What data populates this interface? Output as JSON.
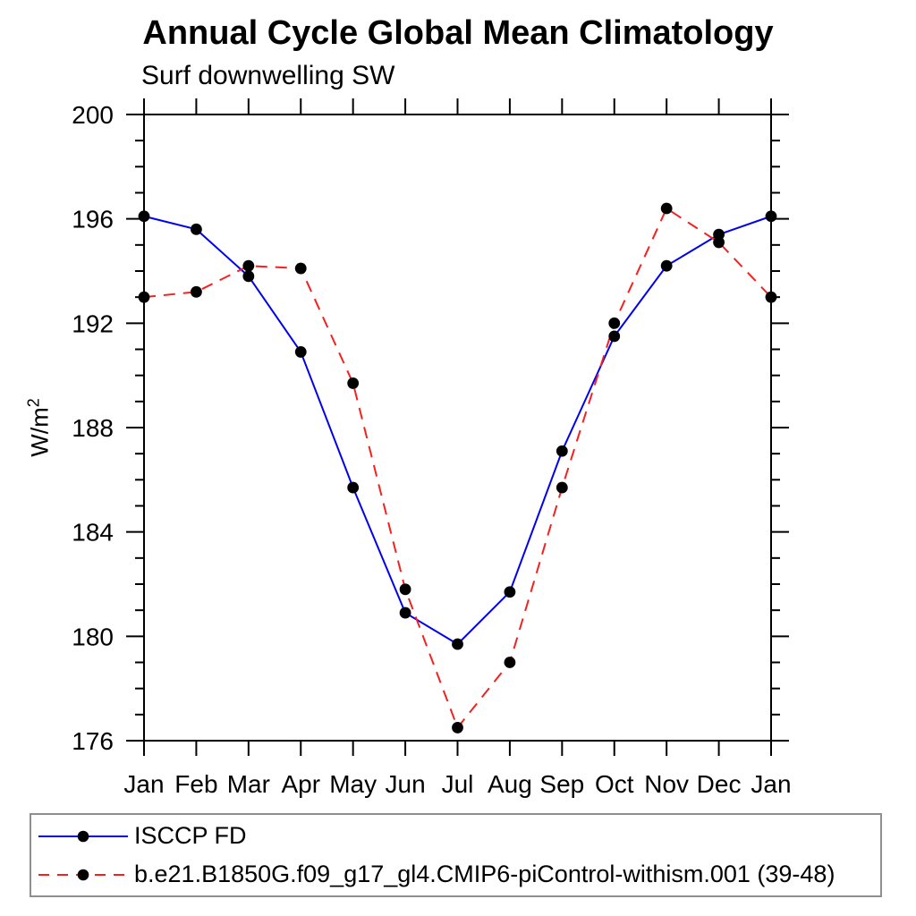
{
  "chart_data": {
    "type": "line",
    "title": "Annual Cycle Global Mean Climatology",
    "subtitle": "Surf downwelling SW",
    "ylabel": {
      "base": "W/m",
      "sup": "2"
    },
    "x_categories": [
      "Jan",
      "Feb",
      "Mar",
      "Apr",
      "May",
      "Jun",
      "Jul",
      "Aug",
      "Sep",
      "Oct",
      "Nov",
      "Dec",
      "Jan"
    ],
    "y_ticks": [
      176,
      180,
      184,
      188,
      192,
      196,
      200
    ],
    "ylim": [
      176,
      200
    ],
    "y_minor_step": 1,
    "grid": false,
    "legend_position": "bottom-left-box",
    "axis_color": "#000000",
    "marker_color": "#000000",
    "series": [
      {
        "name": "ISCCP FD",
        "color": "#0000f2",
        "line_style": "solid",
        "marker": "black-circle",
        "values": [
          196.1,
          195.6,
          193.8,
          190.9,
          185.7,
          180.9,
          179.7,
          181.7,
          187.1,
          191.5,
          194.2,
          195.4,
          196.1
        ]
      },
      {
        "name": "b.e21.B1850G.f09_g17_gl4.CMIP6-piControl-withism.001 (39-48)",
        "color": "#f52020",
        "line_style": "dashed",
        "marker": "black-circle",
        "values": [
          193.0,
          193.2,
          194.2,
          194.1,
          189.7,
          181.8,
          176.5,
          179.0,
          185.7,
          192.0,
          196.4,
          195.1,
          193.0
        ]
      }
    ]
  }
}
